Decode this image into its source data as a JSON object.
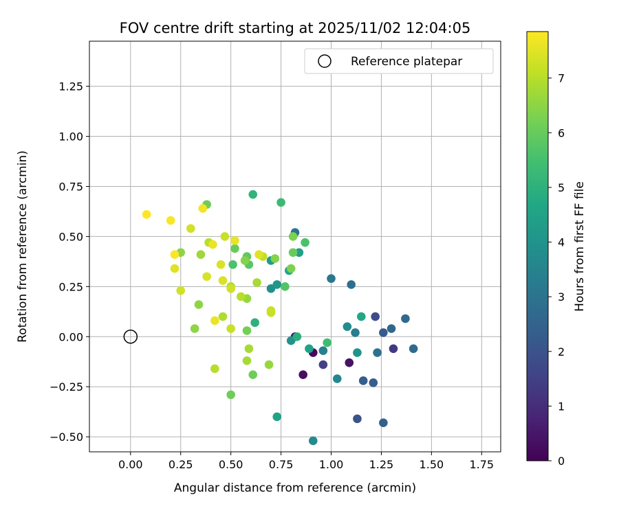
{
  "chart_data": {
    "type": "scatter",
    "title": "FOV centre drift starting at 2025/11/02 12:04:05",
    "xlabel": "Angular distance from reference (arcmin)",
    "ylabel": "Rotation from reference (arcmin)",
    "xlim": [
      -0.205,
      1.845
    ],
    "ylim": [
      -0.575,
      1.475
    ],
    "xticks": [
      0.0,
      0.25,
      0.5,
      0.75,
      1.0,
      1.25,
      1.5,
      1.75
    ],
    "xtick_labels": [
      "0.00",
      "0.25",
      "0.50",
      "0.75",
      "1.00",
      "1.25",
      "1.50",
      "1.75"
    ],
    "yticks": [
      -0.5,
      -0.25,
      0.0,
      0.25,
      0.5,
      0.75,
      1.0,
      1.25
    ],
    "ytick_labels": [
      "−0.50",
      "−0.25",
      "0.00",
      "0.25",
      "0.50",
      "0.75",
      "1.00",
      "1.25"
    ],
    "grid": true,
    "legend": {
      "placement": "top-right",
      "entries": [
        "Reference platepar"
      ]
    },
    "reference_point": {
      "x": 0.0,
      "y": 0.0,
      "label": "Reference platepar"
    },
    "colorbar": {
      "label": "Hours from first FF file",
      "range": [
        0,
        7.85
      ],
      "ticks": [
        0,
        1,
        2,
        3,
        4,
        5,
        6,
        7
      ],
      "tick_labels": [
        "0",
        "1",
        "2",
        "3",
        "4",
        "5",
        "6",
        "7"
      ],
      "colormap": "viridis"
    },
    "points": [
      {
        "x": 0.91,
        "y": -0.08,
        "h": 0.2
      },
      {
        "x": 0.86,
        "y": -0.19,
        "h": 0.3
      },
      {
        "x": 1.09,
        "y": -0.13,
        "h": 0.4
      },
      {
        "x": 0.82,
        "y": 0.0,
        "h": 0.6
      },
      {
        "x": 1.31,
        "y": -0.06,
        "h": 1.3
      },
      {
        "x": 0.96,
        "y": -0.14,
        "h": 1.5
      },
      {
        "x": 1.22,
        "y": 0.1,
        "h": 1.8
      },
      {
        "x": 1.13,
        "y": -0.41,
        "h": 2.0
      },
      {
        "x": 1.26,
        "y": 0.02,
        "h": 2.2
      },
      {
        "x": 1.16,
        "y": -0.22,
        "h": 2.3
      },
      {
        "x": 1.21,
        "y": -0.23,
        "h": 2.3
      },
      {
        "x": 1.26,
        "y": -0.43,
        "h": 2.4
      },
      {
        "x": 1.3,
        "y": 0.04,
        "h": 2.6
      },
      {
        "x": 1.37,
        "y": 0.09,
        "h": 2.7
      },
      {
        "x": 1.41,
        "y": -0.06,
        "h": 2.7
      },
      {
        "x": 1.23,
        "y": -0.08,
        "h": 2.9
      },
      {
        "x": 1.1,
        "y": 0.26,
        "h": 2.9
      },
      {
        "x": 0.82,
        "y": 0.52,
        "h": 3.0
      },
      {
        "x": 1.0,
        "y": 0.29,
        "h": 3.1
      },
      {
        "x": 1.12,
        "y": 0.02,
        "h": 3.3
      },
      {
        "x": 0.96,
        "y": -0.07,
        "h": 3.4
      },
      {
        "x": 1.03,
        "y": -0.21,
        "h": 3.6
      },
      {
        "x": 0.91,
        "y": -0.52,
        "h": 3.7
      },
      {
        "x": 1.08,
        "y": 0.05,
        "h": 3.8
      },
      {
        "x": 0.7,
        "y": 0.24,
        "h": 3.9
      },
      {
        "x": 0.73,
        "y": 0.26,
        "h": 4.1
      },
      {
        "x": 0.8,
        "y": -0.02,
        "h": 4.0
      },
      {
        "x": 1.13,
        "y": -0.08,
        "h": 4.0
      },
      {
        "x": 0.7,
        "y": 0.38,
        "h": 4.3
      },
      {
        "x": 0.84,
        "y": 0.42,
        "h": 4.4
      },
      {
        "x": 0.89,
        "y": -0.06,
        "h": 4.5
      },
      {
        "x": 0.73,
        "y": -0.4,
        "h": 4.5
      },
      {
        "x": 0.79,
        "y": 0.33,
        "h": 4.6
      },
      {
        "x": 1.15,
        "y": 0.1,
        "h": 4.7
      },
      {
        "x": 0.83,
        "y": 0.0,
        "h": 4.9
      },
      {
        "x": 0.62,
        "y": 0.07,
        "h": 5.0
      },
      {
        "x": 0.61,
        "y": 0.71,
        "h": 5.1
      },
      {
        "x": 0.75,
        "y": 0.67,
        "h": 5.3
      },
      {
        "x": 0.98,
        "y": -0.03,
        "h": 5.4
      },
      {
        "x": 0.87,
        "y": 0.47,
        "h": 5.6
      },
      {
        "x": 0.51,
        "y": 0.36,
        "h": 5.6
      },
      {
        "x": 0.77,
        "y": 0.25,
        "h": 5.7
      },
      {
        "x": 0.59,
        "y": 0.36,
        "h": 5.8
      },
      {
        "x": 0.58,
        "y": 0.4,
        "h": 5.9
      },
      {
        "x": 0.52,
        "y": 0.44,
        "h": 6.0
      },
      {
        "x": 0.81,
        "y": 0.42,
        "h": 6.0
      },
      {
        "x": 0.61,
        "y": -0.19,
        "h": 6.1
      },
      {
        "x": 0.5,
        "y": -0.29,
        "h": 6.1
      },
      {
        "x": 0.38,
        "y": 0.66,
        "h": 6.1
      },
      {
        "x": 0.58,
        "y": 0.03,
        "h": 6.2
      },
      {
        "x": 0.8,
        "y": 0.34,
        "h": 6.3
      },
      {
        "x": 0.81,
        "y": 0.5,
        "h": 6.3
      },
      {
        "x": 0.72,
        "y": 0.39,
        "h": 6.4
      },
      {
        "x": 0.57,
        "y": 0.38,
        "h": 6.4
      },
      {
        "x": 0.25,
        "y": 0.42,
        "h": 6.5
      },
      {
        "x": 0.34,
        "y": 0.16,
        "h": 6.5
      },
      {
        "x": 0.32,
        "y": 0.04,
        "h": 6.5
      },
      {
        "x": 0.69,
        "y": -0.14,
        "h": 6.6
      },
      {
        "x": 0.58,
        "y": 0.19,
        "h": 6.6
      },
      {
        "x": 0.35,
        "y": 0.41,
        "h": 6.7
      },
      {
        "x": 0.63,
        "y": 0.27,
        "h": 6.8
      },
      {
        "x": 0.59,
        "y": -0.06,
        "h": 6.8
      },
      {
        "x": 0.58,
        "y": -0.12,
        "h": 6.8
      },
      {
        "x": 0.46,
        "y": 0.1,
        "h": 6.9
      },
      {
        "x": 0.5,
        "y": 0.25,
        "h": 6.9
      },
      {
        "x": 0.55,
        "y": 0.2,
        "h": 7.0
      },
      {
        "x": 0.42,
        "y": -0.16,
        "h": 7.0
      },
      {
        "x": 0.39,
        "y": 0.47,
        "h": 7.0
      },
      {
        "x": 0.66,
        "y": 0.4,
        "h": 7.1
      },
      {
        "x": 0.7,
        "y": 0.13,
        "h": 7.2
      },
      {
        "x": 0.7,
        "y": 0.12,
        "h": 7.2
      },
      {
        "x": 0.5,
        "y": 0.04,
        "h": 7.2
      },
      {
        "x": 0.47,
        "y": 0.5,
        "h": 7.2
      },
      {
        "x": 0.5,
        "y": 0.24,
        "h": 7.3
      },
      {
        "x": 0.25,
        "y": 0.23,
        "h": 7.3
      },
      {
        "x": 0.3,
        "y": 0.54,
        "h": 7.3
      },
      {
        "x": 0.38,
        "y": 0.3,
        "h": 7.4
      },
      {
        "x": 0.45,
        "y": 0.36,
        "h": 7.4
      },
      {
        "x": 0.46,
        "y": 0.28,
        "h": 7.4
      },
      {
        "x": 0.64,
        "y": 0.41,
        "h": 7.5
      },
      {
        "x": 0.22,
        "y": 0.34,
        "h": 7.5
      },
      {
        "x": 0.42,
        "y": 0.08,
        "h": 7.6
      },
      {
        "x": 0.41,
        "y": 0.46,
        "h": 7.6
      },
      {
        "x": 0.52,
        "y": 0.48,
        "h": 7.6
      },
      {
        "x": 0.36,
        "y": 0.64,
        "h": 7.7
      },
      {
        "x": 0.2,
        "y": 0.58,
        "h": 7.8
      },
      {
        "x": 0.22,
        "y": 0.41,
        "h": 7.8
      },
      {
        "x": 0.08,
        "y": 0.61,
        "h": 7.9
      }
    ]
  }
}
